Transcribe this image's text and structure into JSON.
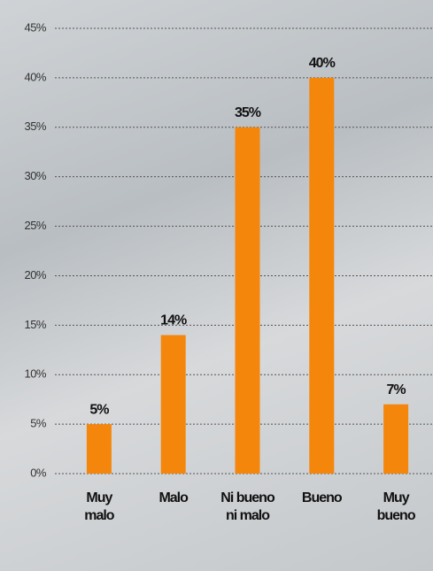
{
  "chart_data": {
    "type": "bar",
    "categories": [
      "Muy malo",
      "Malo",
      "Ni bueno ni malo",
      "Bueno",
      "Muy bueno"
    ],
    "values": [
      5,
      14,
      35,
      40,
      7
    ],
    "value_labels": [
      "5%",
      "14%",
      "35%",
      "40%",
      "7%"
    ],
    "color": "#f5860c",
    "ylim": [
      0,
      45
    ],
    "yticks": [
      {
        "value": 0,
        "label": "0%"
      },
      {
        "value": 5,
        "label": "5%"
      },
      {
        "value": 10,
        "label": "10%"
      },
      {
        "value": 15,
        "label": "15%"
      },
      {
        "value": 20,
        "label": "20%"
      },
      {
        "value": 25,
        "label": "25%"
      },
      {
        "value": 30,
        "label": "30%"
      },
      {
        "value": 35,
        "label": "35%"
      },
      {
        "value": 40,
        "label": "40%"
      },
      {
        "value": 45,
        "label": "45%"
      }
    ],
    "grid": true
  }
}
